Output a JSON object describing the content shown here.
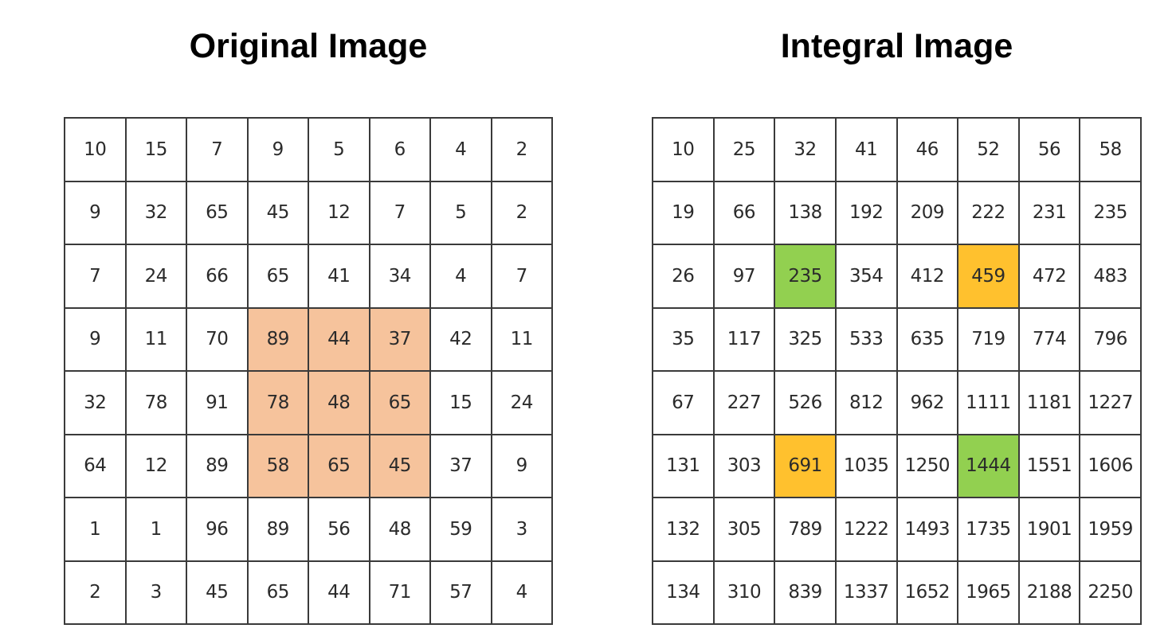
{
  "colors": {
    "region": "#f6c39c",
    "green": "#92d050",
    "yellow": "#ffc12e",
    "grid_line": "#3a3a3a"
  },
  "original": {
    "title": "Original Image",
    "rows": [
      [
        "10",
        "15",
        "7",
        "9",
        "5",
        "6",
        "4",
        "2"
      ],
      [
        "9",
        "32",
        "65",
        "45",
        "12",
        "7",
        "5",
        "2"
      ],
      [
        "7",
        "24",
        "66",
        "65",
        "41",
        "34",
        "4",
        "7"
      ],
      [
        "9",
        "11",
        "70",
        "89",
        "44",
        "37",
        "42",
        "11"
      ],
      [
        "32",
        "78",
        "91",
        "78",
        "48",
        "65",
        "15",
        "24"
      ],
      [
        "64",
        "12",
        "89",
        "58",
        "65",
        "45",
        "37",
        "9"
      ],
      [
        "1",
        "1",
        "96",
        "89",
        "56",
        "48",
        "59",
        "3"
      ],
      [
        "2",
        "3",
        "45",
        "65",
        "44",
        "71",
        "57",
        "4"
      ]
    ],
    "highlights": [
      {
        "row": 3,
        "col": 3,
        "color": "region"
      },
      {
        "row": 3,
        "col": 4,
        "color": "region"
      },
      {
        "row": 3,
        "col": 5,
        "color": "region"
      },
      {
        "row": 4,
        "col": 3,
        "color": "region"
      },
      {
        "row": 4,
        "col": 4,
        "color": "region"
      },
      {
        "row": 4,
        "col": 5,
        "color": "region"
      },
      {
        "row": 5,
        "col": 3,
        "color": "region"
      },
      {
        "row": 5,
        "col": 4,
        "color": "region"
      },
      {
        "row": 5,
        "col": 5,
        "color": "region"
      }
    ]
  },
  "integral": {
    "title": "Integral Image",
    "rows": [
      [
        "10",
        "25",
        "32",
        "41",
        "46",
        "52",
        "56",
        "58"
      ],
      [
        "19",
        "66",
        "138",
        "192",
        "209",
        "222",
        "231",
        "235"
      ],
      [
        "26",
        "97",
        "235",
        "354",
        "412",
        "459",
        "472",
        "483"
      ],
      [
        "35",
        "117",
        "325",
        "533",
        "635",
        "719",
        "774",
        "796"
      ],
      [
        "67",
        "227",
        "526",
        "812",
        "962",
        "1111",
        "1181",
        "1227"
      ],
      [
        "131",
        "303",
        "691",
        "1035",
        "1250",
        "1444",
        "1551",
        "1606"
      ],
      [
        "132",
        "305",
        "789",
        "1222",
        "1493",
        "1735",
        "1901",
        "1959"
      ],
      [
        "134",
        "310",
        "839",
        "1337",
        "1652",
        "1965",
        "2188",
        "2250"
      ]
    ],
    "highlights": [
      {
        "row": 2,
        "col": 2,
        "color": "green"
      },
      {
        "row": 2,
        "col": 5,
        "color": "yellow"
      },
      {
        "row": 5,
        "col": 2,
        "color": "yellow"
      },
      {
        "row": 5,
        "col": 5,
        "color": "green"
      }
    ]
  }
}
